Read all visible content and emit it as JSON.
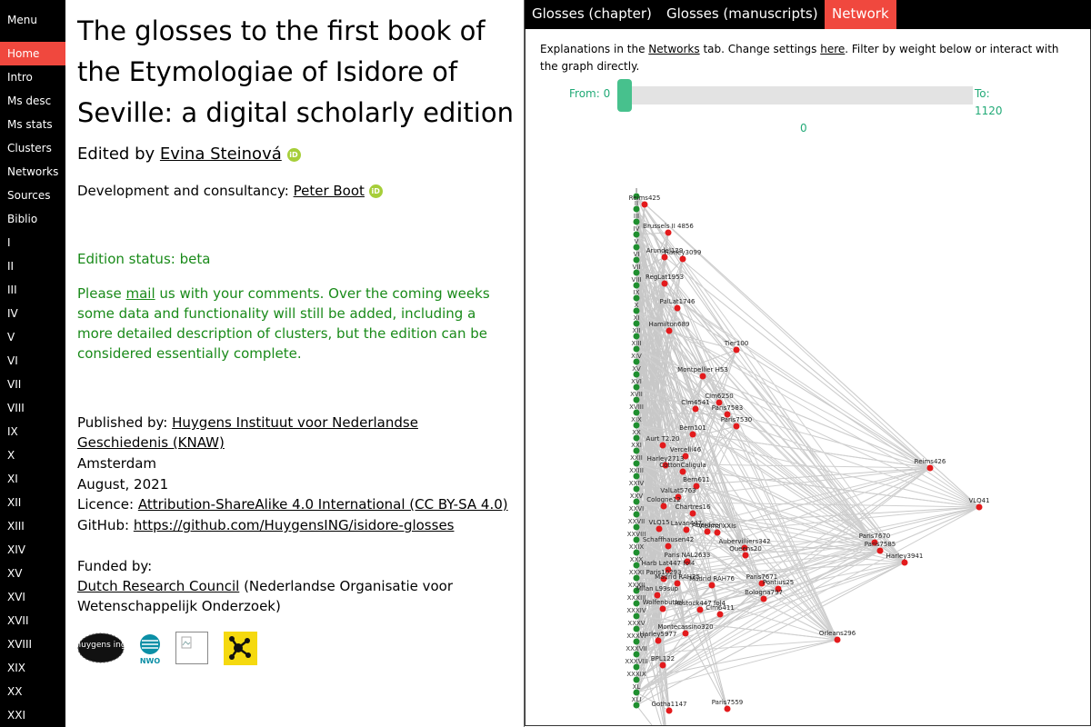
{
  "sidebar": {
    "title": "Menu",
    "items": [
      "Home",
      "Intro",
      "Ms desc",
      "Ms stats",
      "Clusters",
      "Networks",
      "Sources",
      "Biblio",
      "I",
      "II",
      "III",
      "IV",
      "V",
      "VI",
      "VII",
      "VIII",
      "IX",
      "X",
      "XI",
      "XII",
      "XIII",
      "XIV",
      "XV",
      "XVI",
      "XVII",
      "XVIII",
      "XIX",
      "XX",
      "XXI"
    ],
    "active": "Home"
  },
  "main": {
    "title": "The glosses to the first book of the Etymologiae of Isidore of Seville: a digital scholarly edition",
    "edited_prefix": "Edited by",
    "editor": "Evina Steinová",
    "dev_prefix": "Development and consultancy:",
    "developer": "Peter Boot",
    "orcid_label": "iD",
    "status": "Edition status: beta",
    "comments_prefix": "Please",
    "comments_link": "mail",
    "comments_rest": "us with your comments. Over the coming weeks some data and functionality will still be added, including a more detailed description of clusters, but the edition can be considered essentially complete.",
    "published_prefix": "Published by:",
    "publisher": "Huygens Instituut voor Nederlandse Geschiedenis (KNAW)",
    "place": "Amsterdam",
    "date": "August, 2021",
    "licence_prefix": "Licence:",
    "licence": "Attribution-ShareAlike 4.0 International (CC BY-SA 4.0)",
    "github_prefix": "GitHub:",
    "github": "https://github.com/HuygensING/isidore-glosses",
    "funded_prefix": "Funded by:",
    "funder": "Dutch Research Council",
    "funder_rest": "(Nederlandse Organisatie voor Wetenschappelijk Onderzoek)",
    "logos": [
      "huygens-ing-logo",
      "nwo-logo",
      "broken-image-icon",
      "network-logo"
    ],
    "logo_text": {
      "huygens": "huygens ing",
      "nwo": "NWO"
    }
  },
  "panel": {
    "tabs": [
      "Glosses (chapter)",
      "Glosses (manuscripts)",
      "Network"
    ],
    "active_tab": "Network",
    "explain_1": "Explanations in the",
    "explain_link1": "Networks",
    "explain_2": "tab. Change settings",
    "explain_link2": "here",
    "explain_3": ". Filter by weight below or interact with the graph directly.",
    "slider": {
      "from_label": "From: 0",
      "to_label": "To: 1120",
      "value": "0",
      "min": 0,
      "max": 1120
    }
  },
  "graph": {
    "chapters": [
      "I",
      "II",
      "III",
      "IV",
      "V",
      "VI",
      "VII",
      "VIII",
      "IX",
      "X",
      "XI",
      "XII",
      "XIII",
      "XIV",
      "XV",
      "XVI",
      "XVII",
      "XVIII",
      "XIX",
      "XX",
      "XXI",
      "XXII",
      "XXIII",
      "XXIV",
      "XXV",
      "XXVI",
      "XXVII",
      "XXVIII",
      "XXIX",
      "XXX",
      "XXXI",
      "XXXII",
      "XXXIII",
      "XXXIV",
      "XXXV",
      "XXXVI",
      "XXXVII",
      "XXXVIII",
      "XXXIX",
      "XL",
      "XLI"
    ],
    "manuscripts": [
      "Reims425",
      "Brussels II 4856",
      "Arundel129",
      "Harley3099",
      "RegLat1953",
      "PalLat1746",
      "Hamilton689",
      "Tier100",
      "Montpellier H53",
      "Clm6250",
      "Clm4541",
      "Paris7583",
      "Paris7530",
      "Bern101",
      "Aurt T2.20",
      "Vercelli46",
      "Harley2713",
      "CottonCaligula",
      "Bern611",
      "ValLat5763",
      "Cologne12",
      "Chartres16",
      "VLQ15",
      "Lavan447",
      "Aberdeen",
      "Vienna XXIs",
      "Aubervilliers342",
      "Schaffhausen42",
      "Queens20",
      "Paris NAL2633",
      "Harb Lat447 fol4",
      "Paris10293",
      "Madrid RAH25",
      "Madrid RAH76",
      "Paris7671",
      "Pontius25",
      "Milan L99sup",
      "Bologna797",
      "Wolfenbuttel",
      "Rostock447 fol4",
      "Clm6411",
      "Montecassino320",
      "Harley5977",
      "BPL122",
      "Gotha1147",
      "Paris7559",
      "Paris7569",
      "Reims426",
      "VLQ41",
      "Paris7670",
      "Paris7585",
      "Harley3941",
      "Orleans296"
    ]
  }
}
